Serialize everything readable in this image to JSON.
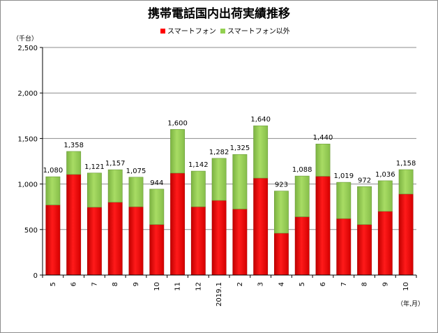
{
  "chart_data": {
    "type": "bar",
    "stacked": true,
    "title": "携帯電話国内出荷実績推移",
    "ylabel": "（千台）",
    "xlabel": "（年,月）",
    "ylim": [
      0,
      2500
    ],
    "yticks": [
      0,
      500,
      1000,
      1500,
      2000,
      2500
    ],
    "ytick_labels": [
      "0",
      "500",
      "1,000",
      "1,500",
      "2,000",
      "2,500"
    ],
    "grid": true,
    "legend_position": "top-center",
    "categories": [
      "5",
      "6",
      "7",
      "8",
      "9",
      "10",
      "11",
      "12",
      "2019.1",
      "2",
      "3",
      "4",
      "5",
      "6",
      "7",
      "8",
      "9",
      "10"
    ],
    "series": [
      {
        "name": "スマートフォン",
        "color": "#ff0000",
        "values": [
          770,
          1105,
          745,
          800,
          750,
          555,
          1120,
          750,
          820,
          725,
          1065,
          460,
          640,
          1085,
          620,
          555,
          700,
          890
        ]
      },
      {
        "name": "スマートフォン以外",
        "color": "#92d050",
        "values": [
          310,
          253,
          376,
          357,
          325,
          389,
          480,
          392,
          462,
          600,
          575,
          463,
          448,
          355,
          399,
          417,
          336,
          268
        ]
      }
    ],
    "totals": [
      1080,
      1358,
      1121,
      1157,
      1075,
      944,
      1600,
      1142,
      1282,
      1325,
      1640,
      923,
      1088,
      1440,
      1019,
      972,
      1036,
      1158
    ],
    "total_labels": [
      "1,080",
      "1,358",
      "1,121",
      "1,157",
      "1,075",
      "944",
      "1,600",
      "1,142",
      "1,282",
      "1,325",
      "1,640",
      "923",
      "1,088",
      "1,440",
      "1,019",
      "972",
      "1,036",
      "1,158"
    ]
  }
}
